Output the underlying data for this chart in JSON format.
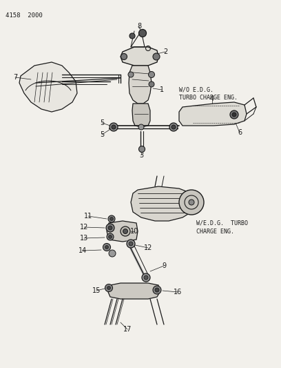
{
  "title": "4158  2000",
  "bg_color": "#f2f0eb",
  "line_color": "#1a1a1a",
  "text_color": "#1a1a1a",
  "label1_line1": "W/O E.D.G.",
  "label1_line2": "TURBO CHARGE ENG.",
  "label2_line1": "W/E.D.G.  TURBO",
  "label2_line2": "CHARGE ENG.",
  "figsize": [
    4.08,
    5.33
  ],
  "dpi": 100
}
